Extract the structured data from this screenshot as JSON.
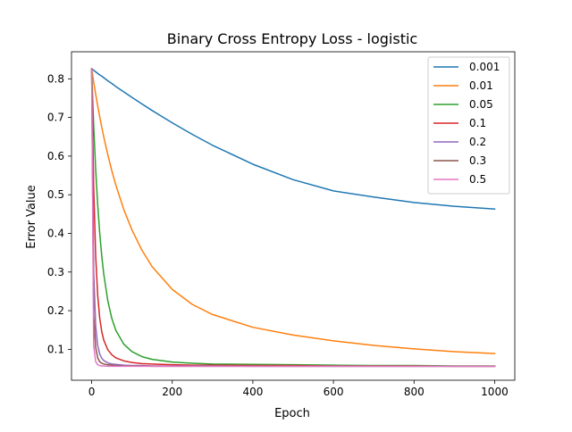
{
  "chart_data": {
    "type": "line",
    "title": "Binary Cross Entropy Loss - logistic",
    "xlabel": "Epoch",
    "ylabel": "Error Value",
    "xlim": [
      -50,
      1050
    ],
    "ylim": [
      0.02,
      0.87
    ],
    "xticks": [
      0,
      200,
      400,
      600,
      800,
      1000
    ],
    "yticks": [
      0.1,
      0.2,
      0.3,
      0.4,
      0.5,
      0.6,
      0.7,
      0.8
    ],
    "grid": false,
    "legend_position": "top-right",
    "x": [
      0,
      5,
      10,
      15,
      20,
      25,
      30,
      40,
      50,
      60,
      80,
      100,
      125,
      150,
      200,
      250,
      300,
      400,
      500,
      600,
      700,
      800,
      900,
      1000
    ],
    "series": [
      {
        "name": "0.001",
        "color": "#1f77b4",
        "values": [
          0.826,
          0.822,
          0.818,
          0.814,
          0.81,
          0.807,
          0.803,
          0.795,
          0.788,
          0.78,
          0.766,
          0.752,
          0.735,
          0.718,
          0.686,
          0.656,
          0.628,
          0.579,
          0.539,
          0.51,
          0.494,
          0.48,
          0.47,
          0.463
        ]
      },
      {
        "name": "0.01",
        "color": "#ff7f0e",
        "values": [
          0.826,
          0.792,
          0.76,
          0.73,
          0.702,
          0.675,
          0.65,
          0.604,
          0.562,
          0.525,
          0.461,
          0.409,
          0.356,
          0.314,
          0.255,
          0.216,
          0.19,
          0.157,
          0.137,
          0.122,
          0.11,
          0.101,
          0.094,
          0.089
        ]
      },
      {
        "name": "0.05",
        "color": "#2ca02c",
        "values": [
          0.826,
          0.68,
          0.565,
          0.474,
          0.401,
          0.342,
          0.295,
          0.226,
          0.18,
          0.149,
          0.113,
          0.094,
          0.081,
          0.074,
          0.067,
          0.064,
          0.062,
          0.061,
          0.06,
          0.059,
          0.058,
          0.058,
          0.057,
          0.057
        ]
      },
      {
        "name": "0.1",
        "color": "#d62728",
        "values": [
          0.826,
          0.52,
          0.342,
          0.24,
          0.181,
          0.146,
          0.124,
          0.099,
          0.086,
          0.078,
          0.07,
          0.066,
          0.063,
          0.062,
          0.06,
          0.059,
          0.059,
          0.058,
          0.058,
          0.057,
          0.057,
          0.057,
          0.056,
          0.056
        ]
      },
      {
        "name": "0.2",
        "color": "#9467bd",
        "values": [
          0.826,
          0.3,
          0.16,
          0.11,
          0.088,
          0.077,
          0.071,
          0.065,
          0.062,
          0.061,
          0.059,
          0.058,
          0.058,
          0.057,
          0.057,
          0.057,
          0.057,
          0.056,
          0.056,
          0.056,
          0.056,
          0.056,
          0.056,
          0.056
        ]
      },
      {
        "name": "0.3",
        "color": "#8c564b",
        "values": [
          0.826,
          0.19,
          0.105,
          0.078,
          0.068,
          0.064,
          0.062,
          0.06,
          0.059,
          0.058,
          0.057,
          0.057,
          0.057,
          0.056,
          0.056,
          0.056,
          0.056,
          0.056,
          0.056,
          0.056,
          0.056,
          0.056,
          0.056,
          0.056
        ]
      },
      {
        "name": "0.5",
        "color": "#e377c2",
        "values": [
          0.826,
          0.11,
          0.068,
          0.06,
          0.058,
          0.057,
          0.057,
          0.056,
          0.056,
          0.056,
          0.056,
          0.056,
          0.056,
          0.056,
          0.056,
          0.056,
          0.056,
          0.056,
          0.056,
          0.056,
          0.056,
          0.056,
          0.056,
          0.056
        ]
      }
    ]
  }
}
